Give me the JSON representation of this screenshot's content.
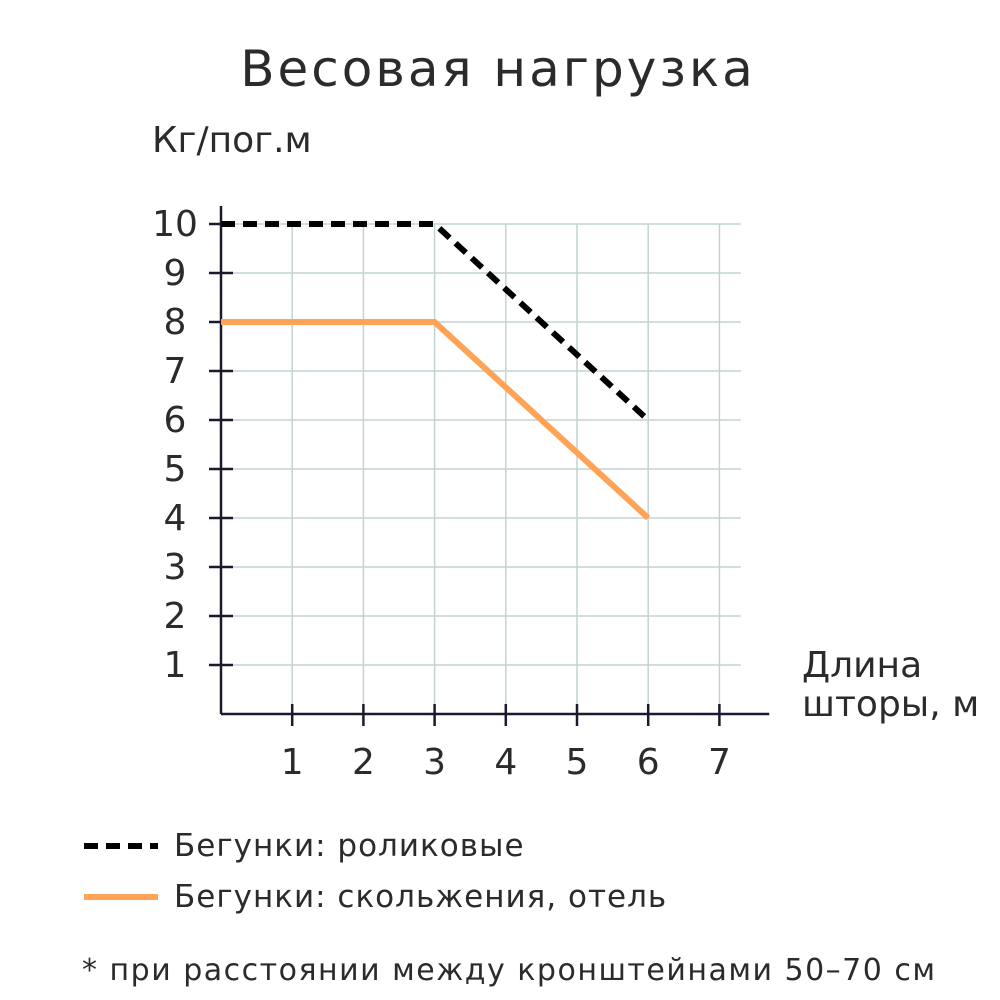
{
  "chart_data": {
    "type": "line",
    "title": "Весовая нагрузка",
    "ylabel": "Кг/пог.м",
    "xlabel_lines": [
      "Длина",
      "шторы, м"
    ],
    "x_ticks": [
      1,
      2,
      3,
      4,
      5,
      6,
      7
    ],
    "y_ticks": [
      1,
      2,
      3,
      4,
      5,
      6,
      7,
      8,
      9,
      10
    ],
    "xlim": [
      0,
      7.7
    ],
    "ylim": [
      0,
      10
    ],
    "grid": true,
    "legend_position": "bottom-left",
    "series": [
      {
        "name": "Бегунки: роликовые",
        "style": "dashed",
        "color": "#000000",
        "points": [
          [
            0,
            10
          ],
          [
            3,
            10
          ],
          [
            6,
            6
          ]
        ]
      },
      {
        "name": "Бегунки: скольжения, отель",
        "style": "solid",
        "color": "#ffa357",
        "points": [
          [
            0,
            8
          ],
          [
            3,
            8
          ],
          [
            6,
            4
          ]
        ]
      }
    ],
    "grid_color": "#c3d3d3",
    "axis_color": "#1a1a2e",
    "footnote": "* при расстоянии между кронштейнами 50–70 см"
  }
}
